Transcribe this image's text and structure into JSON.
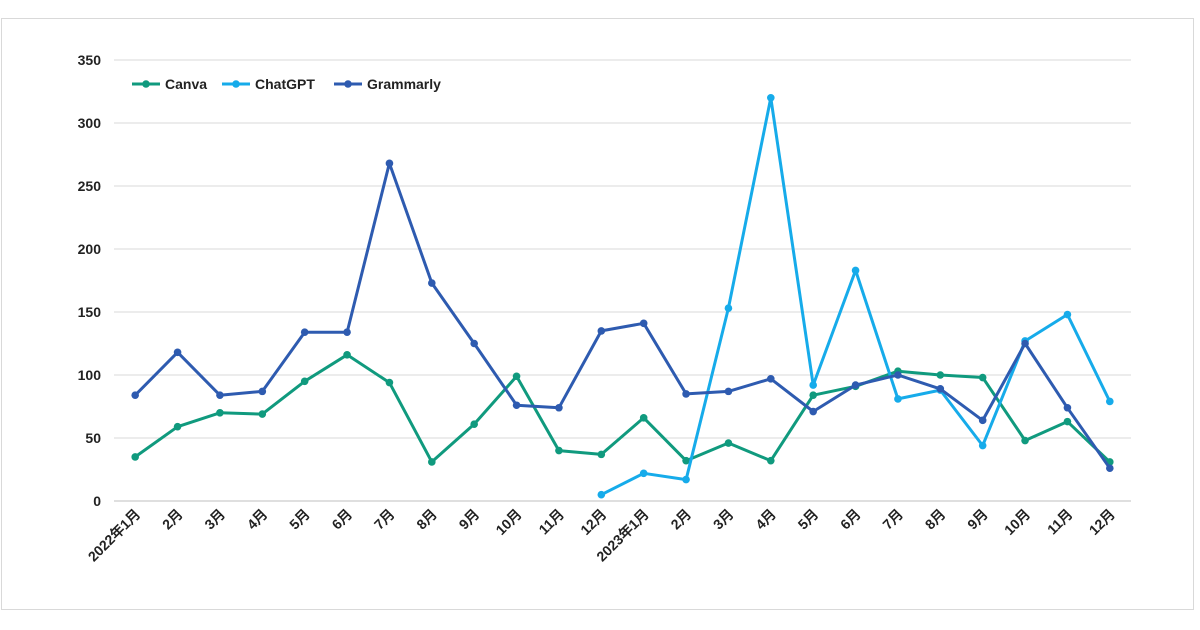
{
  "chart_data": {
    "type": "line",
    "title": "",
    "xlabel": "",
    "ylabel": "",
    "ylim": [
      0,
      350
    ],
    "yticks": [
      0,
      50,
      100,
      150,
      200,
      250,
      300,
      350
    ],
    "grid": true,
    "legend_position": "top-left",
    "categories": [
      "2022年1月",
      "2月",
      "3月",
      "4月",
      "5月",
      "6月",
      "7月",
      "8月",
      "9月",
      "10月",
      "11月",
      "12月",
      "2023年1月",
      "2月",
      "3月",
      "4月",
      "5月",
      "6月",
      "7月",
      "8月",
      "9月",
      "10月",
      "11月",
      "12月"
    ],
    "series": [
      {
        "name": "Canva",
        "color": "#109a7e",
        "values": [
          35,
          59,
          70,
          69,
          95,
          116,
          94,
          31,
          61,
          99,
          40,
          37,
          66,
          32,
          46,
          32,
          84,
          91,
          103,
          100,
          98,
          48,
          63,
          31
        ]
      },
      {
        "name": "ChatGPT",
        "color": "#16abea",
        "values": [
          null,
          null,
          null,
          null,
          null,
          null,
          null,
          null,
          null,
          null,
          null,
          5,
          22,
          17,
          153,
          320,
          92,
          183,
          81,
          88,
          44,
          127,
          148,
          79
        ]
      },
      {
        "name": "Grammarly",
        "color": "#2e5bb0",
        "values": [
          84,
          118,
          84,
          87,
          134,
          134,
          268,
          173,
          125,
          76,
          74,
          135,
          141,
          85,
          87,
          97,
          71,
          92,
          100,
          89,
          64,
          125,
          74,
          26
        ]
      }
    ]
  }
}
